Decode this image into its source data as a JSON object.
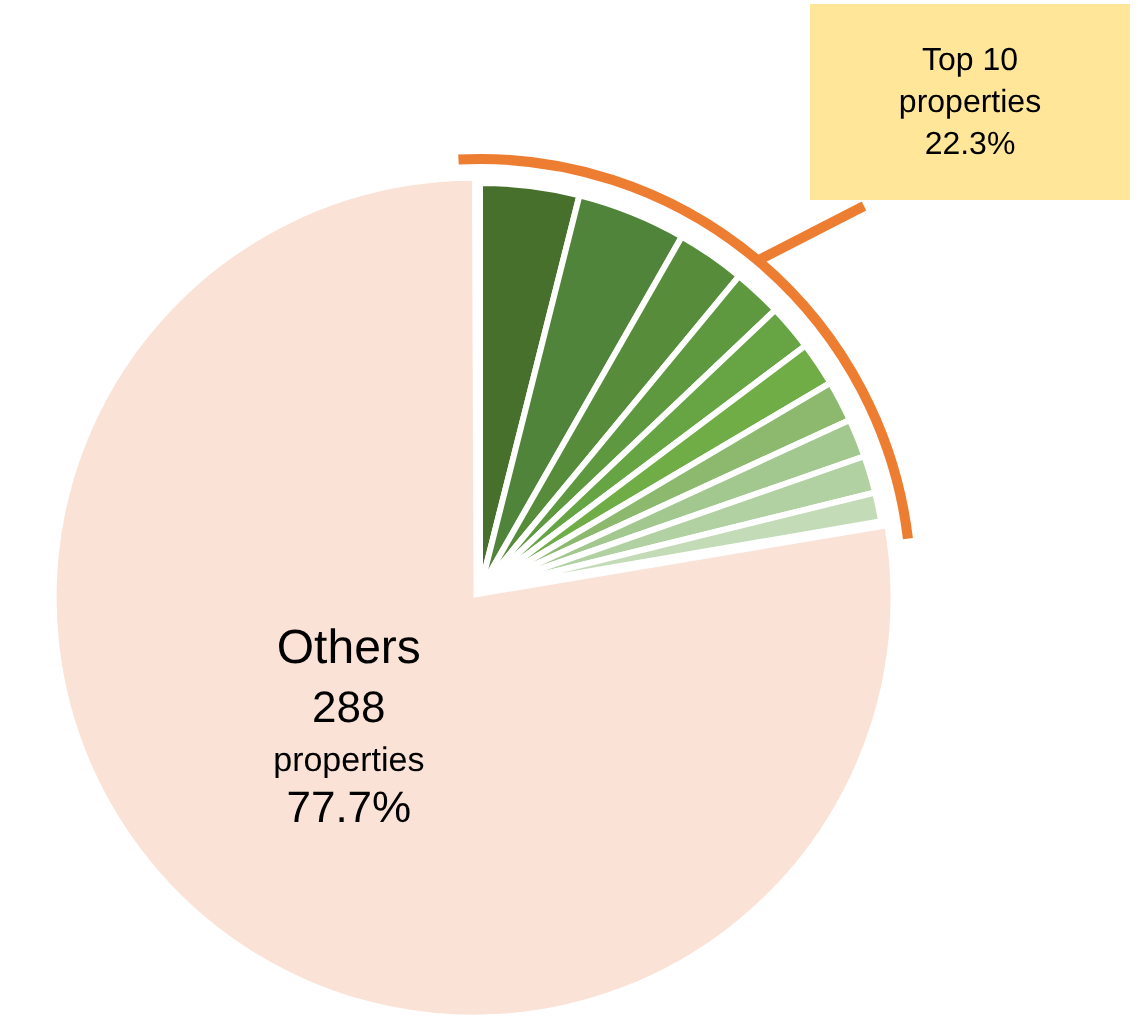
{
  "chart_data": {
    "type": "pie",
    "categories": [
      null,
      null,
      null,
      null,
      null,
      null,
      null,
      null,
      null,
      null,
      "Others"
    ],
    "values": [
      3.93,
      4.33,
      2.72,
      1.94,
      1.83,
      1.75,
      1.64,
      1.53,
      1.48,
      1.15,
      77.7
    ],
    "colors": [
      "#47702c",
      "#50843a",
      "#568c3a",
      "#5e9940",
      "#66a444",
      "#70ad47",
      "#8db96f",
      "#a2c78f",
      "#b2d1a3",
      "#c4dbb8",
      "#fae3d6"
    ],
    "value_labels": [
      null,
      null,
      null,
      null,
      null,
      null,
      null,
      null,
      null,
      null,
      "288\nproperties\n77.7%"
    ],
    "annotations": [
      "Top 10\nproperties\n22.3%"
    ],
    "legend": false
  }
}
